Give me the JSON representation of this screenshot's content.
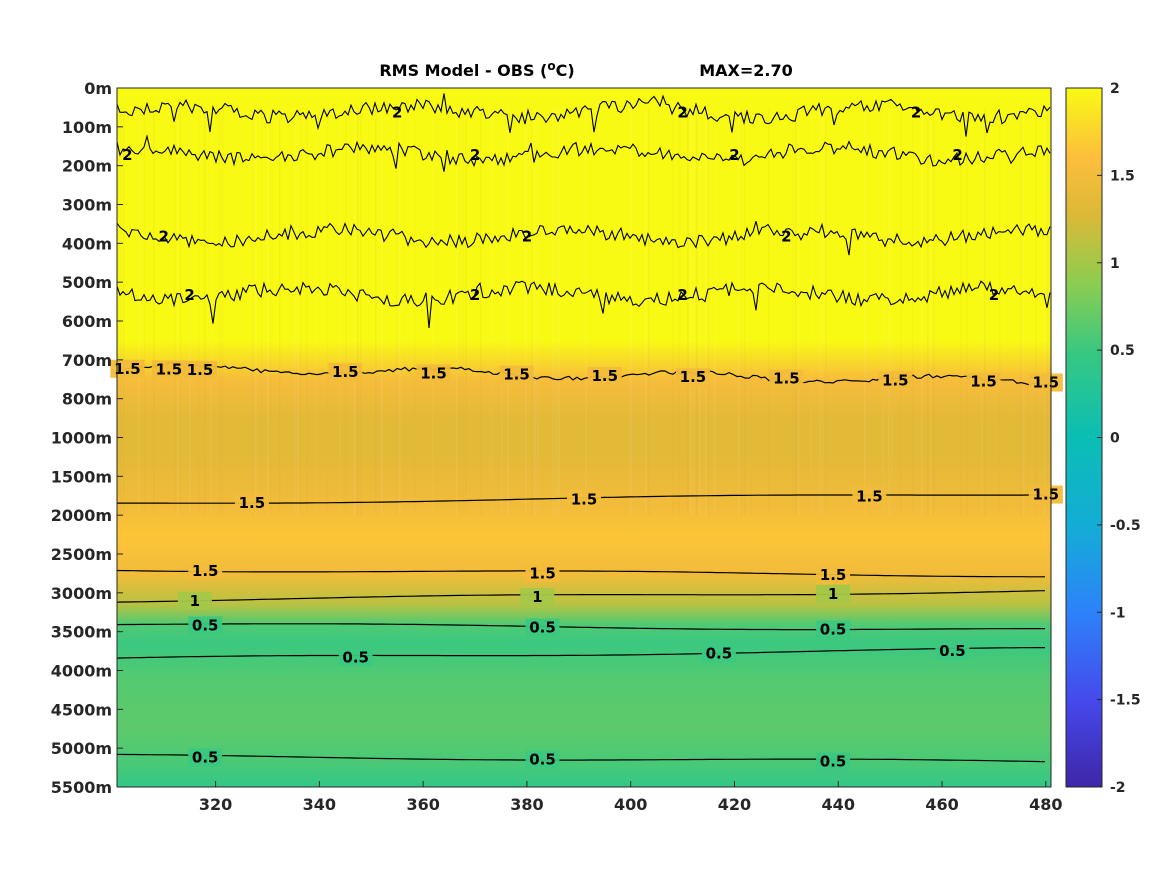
{
  "chart_data": {
    "type": "heatmap",
    "title": {
      "prefix": "RMS Model - OBS (",
      "superscript": "o",
      "suffix": "C)",
      "max_label": "MAX=2.70"
    },
    "x_ticks": [
      320,
      340,
      360,
      380,
      400,
      420,
      440,
      460,
      480
    ],
    "x_range": [
      301,
      481
    ],
    "y_ticks": [
      "0m",
      "100m",
      "200m",
      "300m",
      "400m",
      "500m",
      "600m",
      "700m",
      "800m",
      "1000m",
      "1500m",
      "2000m",
      "2500m",
      "3000m",
      "3500m",
      "4000m",
      "4500m",
      "5000m",
      "5500m"
    ],
    "y_direction": "top-to-bottom",
    "colorbar": {
      "ticks": [
        "2",
        "1.5",
        "1",
        "0.5",
        "0",
        "-0.5",
        "-1",
        "-1.5",
        "-2"
      ],
      "range": [
        -2,
        2
      ],
      "colormap": "parula"
    },
    "depth_profile": [
      {
        "depth_index": 0.0,
        "value": 2.0
      },
      {
        "depth_index": 6.5,
        "value": 2.0
      },
      {
        "depth_index": 7.5,
        "value": 1.55
      },
      {
        "depth_index": 8.5,
        "value": 1.35
      },
      {
        "depth_index": 9.5,
        "value": 1.35
      },
      {
        "depth_index": 10.8,
        "value": 1.5
      },
      {
        "depth_index": 11.5,
        "value": 1.65
      },
      {
        "depth_index": 12.5,
        "value": 1.5
      },
      {
        "depth_index": 13.3,
        "value": 1.1
      },
      {
        "depth_index": 13.8,
        "value": 0.6
      },
      {
        "depth_index": 14.3,
        "value": 0.5
      },
      {
        "depth_index": 15.3,
        "value": 0.62
      },
      {
        "depth_index": 16.5,
        "value": 0.66
      },
      {
        "depth_index": 17.5,
        "value": 0.55
      },
      {
        "depth_index": 18.0,
        "value": 0.42
      }
    ],
    "contours": [
      {
        "level": "2",
        "depth_index": 0.6,
        "style": "noisy",
        "labels_x": [
          355,
          410,
          455
        ]
      },
      {
        "level": "2",
        "depth_index": 1.7,
        "style": "noisy",
        "labels_x": [
          303,
          370,
          420,
          463
        ]
      },
      {
        "level": "2",
        "depth_index": 3.8,
        "style": "noisy",
        "labels_x": [
          310,
          380,
          430
        ]
      },
      {
        "level": "2",
        "depth_index": 5.3,
        "style": "noisy",
        "labels_x": [
          315,
          370,
          410,
          470
        ]
      },
      {
        "level": "1.5",
        "depth_index": 7.2,
        "style": "wavy",
        "labels_x": [
          303,
          311,
          317,
          345,
          362,
          378,
          395,
          412,
          430,
          451,
          468,
          480
        ]
      },
      {
        "level": "1.5",
        "depth_index": 10.7,
        "style": "smooth",
        "labels_x": [
          327,
          391,
          446,
          480
        ]
      },
      {
        "level": "1.5",
        "depth_index": 12.4,
        "style": "smooth",
        "labels_x": [
          318,
          383,
          439
        ]
      },
      {
        "level": "1",
        "depth_index": 13.2,
        "style": "smooth",
        "labels_x": [
          316,
          382,
          439
        ]
      },
      {
        "level": "0.5",
        "depth_index": 13.8,
        "style": "smooth",
        "labels_x": [
          318,
          383,
          439
        ]
      },
      {
        "level": "0.5",
        "depth_index": 14.7,
        "style": "smooth",
        "labels_x": [
          347,
          417,
          462
        ]
      },
      {
        "level": "0.5",
        "depth_index": 17.2,
        "style": "smooth",
        "labels_x": [
          318,
          383,
          439
        ]
      }
    ]
  }
}
